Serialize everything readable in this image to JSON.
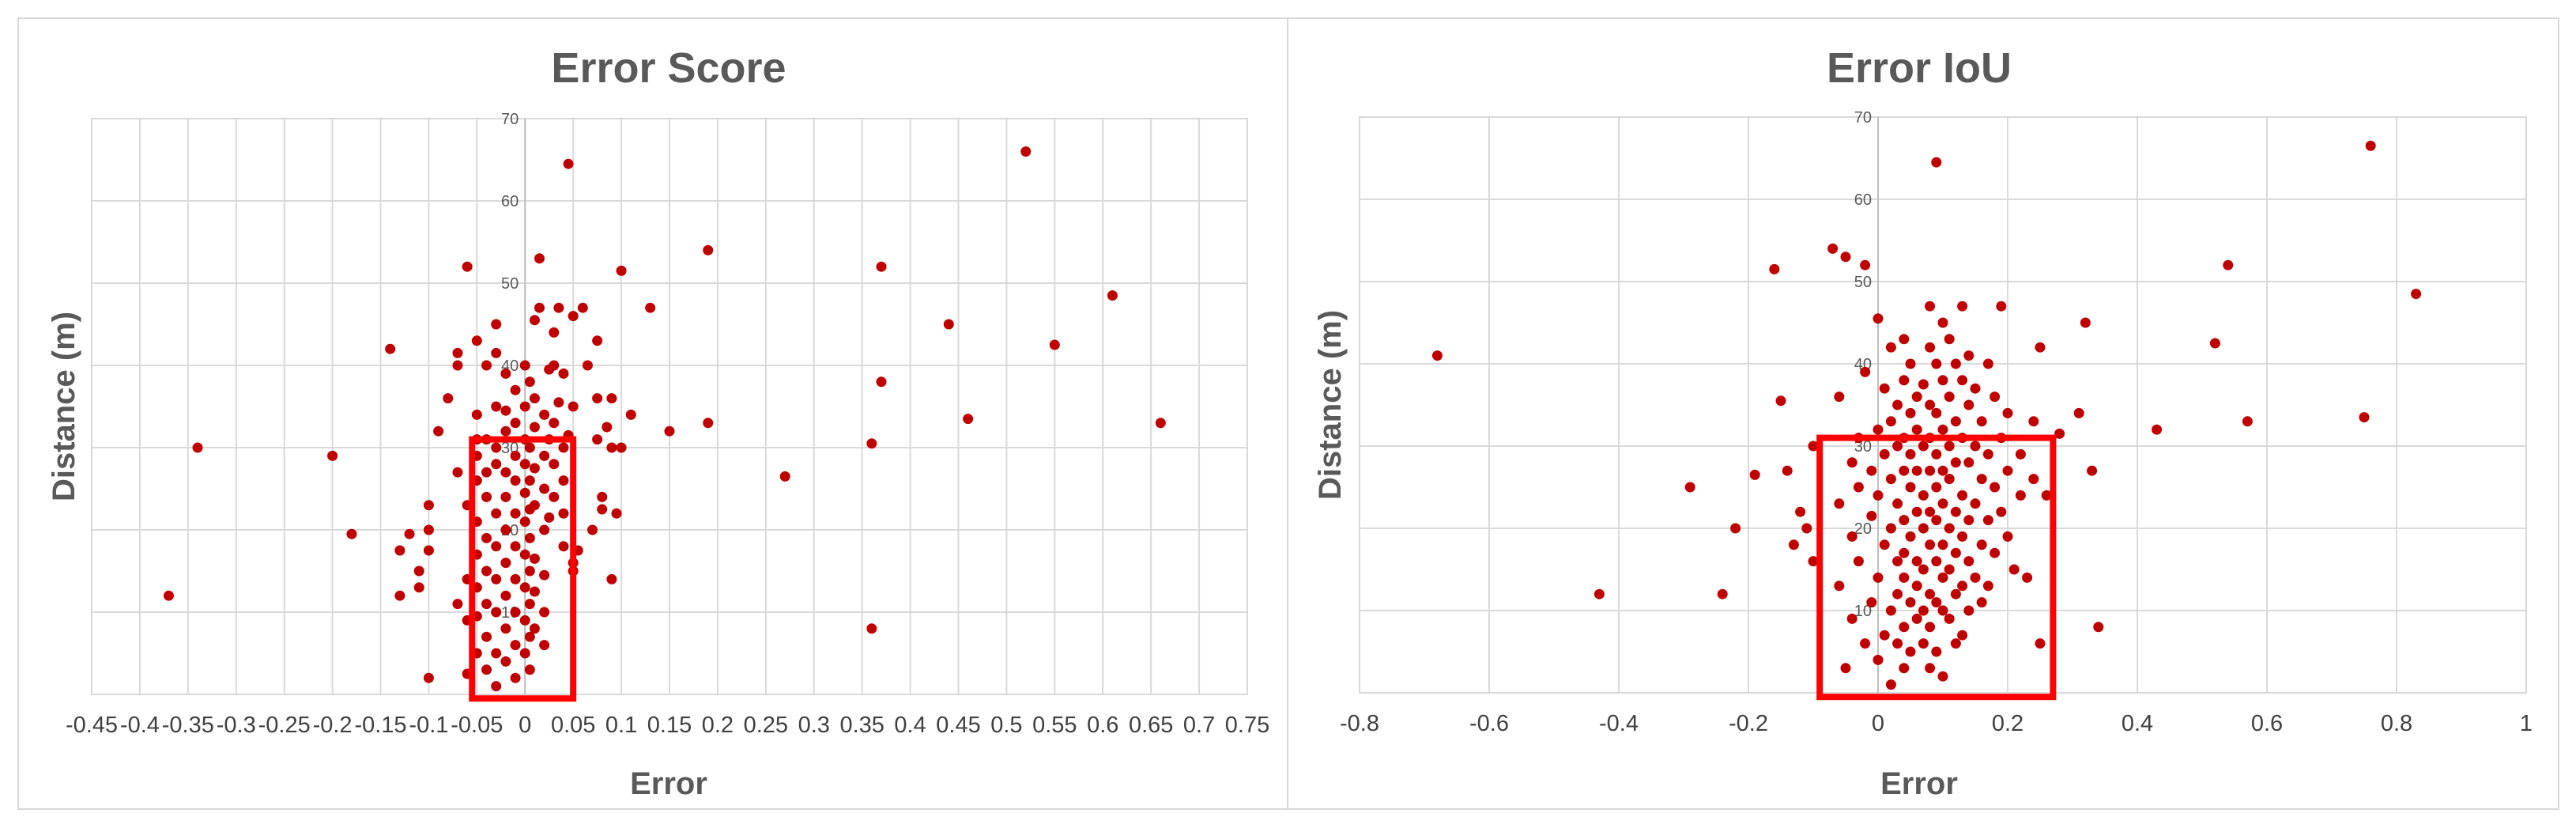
{
  "chart_data": [
    {
      "type": "scatter",
      "title": "Error Score",
      "xlabel": "Error",
      "ylabel": "Distance (m)",
      "xlim": [
        -0.45,
        0.75
      ],
      "ylim": [
        0,
        70
      ],
      "x_ticks": [
        "-0.45",
        "-0.4",
        "-0.35",
        "-0.3",
        "-0.25",
        "-0.2",
        "-0.15",
        "-0.1",
        "-0.05",
        "0",
        "0.05",
        "0.1",
        "0.15",
        "0.2",
        "0.25",
        "0.3",
        "0.35",
        "0.4",
        "0.45",
        "0.5",
        "0.55",
        "0.6",
        "0.65",
        "0.7",
        "0.75"
      ],
      "y_ticks": [
        "10",
        "20",
        "30",
        "40",
        "50",
        "60",
        "70"
      ],
      "grid": true,
      "color": "#c00000",
      "highlight_box": {
        "x": [
          -0.055,
          0.05
        ],
        "y": [
          -0.5,
          31
        ],
        "color": "#ff0000"
      },
      "points": [
        [
          -0.37,
          12
        ],
        [
          -0.34,
          30
        ],
        [
          -0.2,
          29
        ],
        [
          -0.18,
          19.5
        ],
        [
          -0.14,
          42
        ],
        [
          -0.13,
          12
        ],
        [
          -0.13,
          17.5
        ],
        [
          -0.12,
          19.5
        ],
        [
          -0.11,
          13
        ],
        [
          -0.11,
          15
        ],
        [
          -0.1,
          2
        ],
        [
          -0.1,
          17.5
        ],
        [
          -0.1,
          20
        ],
        [
          -0.1,
          23
        ],
        [
          -0.09,
          32
        ],
        [
          -0.08,
          36
        ],
        [
          -0.07,
          27
        ],
        [
          -0.07,
          40
        ],
        [
          -0.07,
          41.5
        ],
        [
          -0.07,
          11
        ],
        [
          -0.06,
          52
        ],
        [
          -0.06,
          23
        ],
        [
          -0.06,
          2.5
        ],
        [
          -0.06,
          14
        ],
        [
          -0.06,
          9
        ],
        [
          -0.05,
          43
        ],
        [
          -0.05,
          34
        ],
        [
          -0.05,
          29
        ],
        [
          -0.05,
          26
        ],
        [
          -0.05,
          21
        ],
        [
          -0.05,
          17
        ],
        [
          -0.05,
          13
        ],
        [
          -0.05,
          9.5
        ],
        [
          -0.05,
          5
        ],
        [
          -0.05,
          31
        ],
        [
          -0.04,
          40
        ],
        [
          -0.04,
          31
        ],
        [
          -0.04,
          27
        ],
        [
          -0.04,
          24
        ],
        [
          -0.04,
          19
        ],
        [
          -0.04,
          15
        ],
        [
          -0.04,
          11
        ],
        [
          -0.04,
          7
        ],
        [
          -0.04,
          3
        ],
        [
          -0.03,
          45
        ],
        [
          -0.03,
          41.5
        ],
        [
          -0.03,
          35
        ],
        [
          -0.03,
          30
        ],
        [
          -0.03,
          28
        ],
        [
          -0.03,
          22
        ],
        [
          -0.03,
          18
        ],
        [
          -0.03,
          14
        ],
        [
          -0.03,
          10
        ],
        [
          -0.03,
          5
        ],
        [
          -0.03,
          1
        ],
        [
          -0.02,
          39
        ],
        [
          -0.02,
          34.5
        ],
        [
          -0.02,
          32
        ],
        [
          -0.02,
          27
        ],
        [
          -0.02,
          24
        ],
        [
          -0.02,
          20
        ],
        [
          -0.02,
          16
        ],
        [
          -0.02,
          12
        ],
        [
          -0.02,
          8
        ],
        [
          -0.02,
          4
        ],
        [
          -0.01,
          37
        ],
        [
          -0.01,
          33
        ],
        [
          -0.01,
          29
        ],
        [
          -0.01,
          26
        ],
        [
          -0.01,
          22
        ],
        [
          -0.01,
          18
        ],
        [
          -0.01,
          14
        ],
        [
          -0.01,
          10
        ],
        [
          -0.01,
          6
        ],
        [
          -0.01,
          2
        ],
        [
          0,
          40
        ],
        [
          0,
          35
        ],
        [
          0,
          31
        ],
        [
          0,
          28
        ],
        [
          0,
          24.5
        ],
        [
          0,
          21
        ],
        [
          0,
          17
        ],
        [
          0,
          13
        ],
        [
          0,
          9
        ],
        [
          0,
          5
        ],
        [
          0.005,
          38
        ],
        [
          0.005,
          30
        ],
        [
          0.005,
          26
        ],
        [
          0.005,
          22.5
        ],
        [
          0.005,
          19
        ],
        [
          0.005,
          15
        ],
        [
          0.005,
          11
        ],
        [
          0.005,
          7
        ],
        [
          0.005,
          3
        ],
        [
          0.01,
          45.5
        ],
        [
          0.01,
          36
        ],
        [
          0.01,
          32.5
        ],
        [
          0.01,
          27.5
        ],
        [
          0.01,
          23
        ],
        [
          0.01,
          16.5
        ],
        [
          0.01,
          12.5
        ],
        [
          0.01,
          8
        ],
        [
          0.015,
          47
        ],
        [
          0.015,
          53
        ],
        [
          0.02,
          34
        ],
        [
          0.02,
          29
        ],
        [
          0.02,
          25
        ],
        [
          0.02,
          20
        ],
        [
          0.02,
          14.5
        ],
        [
          0.02,
          10
        ],
        [
          0.02,
          6
        ],
        [
          0.025,
          39.5
        ],
        [
          0.025,
          31
        ],
        [
          0.025,
          21.5
        ],
        [
          0.03,
          44
        ],
        [
          0.03,
          40
        ],
        [
          0.03,
          33
        ],
        [
          0.03,
          28
        ],
        [
          0.03,
          24
        ],
        [
          0.035,
          47
        ],
        [
          0.035,
          35.5
        ],
        [
          0.04,
          39
        ],
        [
          0.04,
          30
        ],
        [
          0.04,
          26
        ],
        [
          0.04,
          22
        ],
        [
          0.04,
          18
        ],
        [
          0.045,
          64.5
        ],
        [
          0.045,
          31.5
        ],
        [
          0.05,
          46
        ],
        [
          0.05,
          35
        ],
        [
          0.05,
          16
        ],
        [
          0.05,
          15
        ],
        [
          0.055,
          17.5
        ],
        [
          0.06,
          47
        ],
        [
          0.065,
          40
        ],
        [
          0.07,
          20
        ],
        [
          0.075,
          43
        ],
        [
          0.075,
          36
        ],
        [
          0.075,
          31
        ],
        [
          0.08,
          24
        ],
        [
          0.08,
          22.5
        ],
        [
          0.085,
          32.5
        ],
        [
          0.09,
          36
        ],
        [
          0.09,
          30
        ],
        [
          0.09,
          14
        ],
        [
          0.095,
          22
        ],
        [
          0.1,
          51.5
        ],
        [
          0.1,
          30
        ],
        [
          0.11,
          34
        ],
        [
          0.13,
          47
        ],
        [
          0.15,
          32
        ],
        [
          0.19,
          54
        ],
        [
          0.19,
          33
        ],
        [
          0.27,
          26.5
        ],
        [
          0.36,
          8
        ],
        [
          0.36,
          30.5
        ],
        [
          0.37,
          52
        ],
        [
          0.37,
          38
        ],
        [
          0.44,
          45
        ],
        [
          0.46,
          33.5
        ],
        [
          0.52,
          66
        ],
        [
          0.55,
          42.5
        ],
        [
          0.61,
          48.5
        ],
        [
          0.66,
          33
        ]
      ]
    },
    {
      "type": "scatter",
      "title": "Error IoU",
      "xlabel": "Error",
      "ylabel": "Distance (m)",
      "xlim": [
        -0.8,
        1
      ],
      "ylim": [
        0,
        70
      ],
      "x_ticks": [
        "-0.8",
        "-0.6",
        "-0.4",
        "-0.2",
        "0",
        "0.2",
        "0.4",
        "0.6",
        "0.8",
        "1"
      ],
      "y_ticks": [
        "10",
        "20",
        "30",
        "40",
        "50",
        "60",
        "70"
      ],
      "grid": true,
      "color": "#c00000",
      "highlight_box": {
        "x": [
          -0.09,
          0.27
        ],
        "y": [
          -0.5,
          31
        ],
        "color": "#ff0000"
      },
      "points": [
        [
          -0.68,
          41
        ],
        [
          -0.43,
          12
        ],
        [
          -0.29,
          25
        ],
        [
          -0.24,
          12
        ],
        [
          -0.22,
          20
        ],
        [
          -0.19,
          26.5
        ],
        [
          -0.16,
          51.5
        ],
        [
          -0.15,
          35.5
        ],
        [
          -0.14,
          27
        ],
        [
          -0.13,
          18
        ],
        [
          -0.12,
          22
        ],
        [
          -0.11,
          20
        ],
        [
          -0.1,
          16
        ],
        [
          -0.1,
          30
        ],
        [
          -0.07,
          54
        ],
        [
          -0.05,
          53
        ],
        [
          -0.02,
          52
        ],
        [
          -0.06,
          36
        ],
        [
          -0.06,
          23
        ],
        [
          -0.06,
          13
        ],
        [
          -0.05,
          3
        ],
        [
          -0.04,
          28
        ],
        [
          -0.04,
          19
        ],
        [
          -0.04,
          9
        ],
        [
          -0.03,
          31
        ],
        [
          -0.03,
          25
        ],
        [
          -0.03,
          16
        ],
        [
          -0.02,
          39
        ],
        [
          -0.02,
          6
        ],
        [
          -0.01,
          27
        ],
        [
          -0.01,
          21.5
        ],
        [
          -0.01,
          11
        ],
        [
          0,
          45.5
        ],
        [
          0,
          32
        ],
        [
          0,
          24
        ],
        [
          0,
          14
        ],
        [
          0,
          4
        ],
        [
          0.01,
          37
        ],
        [
          0.01,
          29
        ],
        [
          0.01,
          18
        ],
        [
          0.01,
          7
        ],
        [
          0.02,
          42
        ],
        [
          0.02,
          33
        ],
        [
          0.02,
          26
        ],
        [
          0.02,
          20
        ],
        [
          0.02,
          10
        ],
        [
          0.02,
          1
        ],
        [
          0.03,
          35
        ],
        [
          0.03,
          30
        ],
        [
          0.03,
          23
        ],
        [
          0.03,
          16
        ],
        [
          0.03,
          12
        ],
        [
          0.03,
          6
        ],
        [
          0.04,
          43
        ],
        [
          0.04,
          38
        ],
        [
          0.04,
          31
        ],
        [
          0.04,
          27
        ],
        [
          0.04,
          21
        ],
        [
          0.04,
          17
        ],
        [
          0.04,
          14
        ],
        [
          0.04,
          8
        ],
        [
          0.04,
          3
        ],
        [
          0.05,
          40
        ],
        [
          0.05,
          34
        ],
        [
          0.05,
          29
        ],
        [
          0.05,
          25
        ],
        [
          0.05,
          19
        ],
        [
          0.05,
          11
        ],
        [
          0.05,
          5
        ],
        [
          0.06,
          36
        ],
        [
          0.06,
          32
        ],
        [
          0.06,
          27
        ],
        [
          0.06,
          22
        ],
        [
          0.06,
          16
        ],
        [
          0.06,
          13
        ],
        [
          0.06,
          9
        ],
        [
          0.07,
          37.5
        ],
        [
          0.07,
          30
        ],
        [
          0.07,
          24
        ],
        [
          0.07,
          20
        ],
        [
          0.07,
          15
        ],
        [
          0.07,
          10
        ],
        [
          0.07,
          6
        ],
        [
          0.08,
          47
        ],
        [
          0.08,
          42
        ],
        [
          0.08,
          35
        ],
        [
          0.08,
          31
        ],
        [
          0.08,
          27
        ],
        [
          0.08,
          22
        ],
        [
          0.08,
          18
        ],
        [
          0.08,
          12
        ],
        [
          0.08,
          8
        ],
        [
          0.08,
          3
        ],
        [
          0.09,
          64.5
        ],
        [
          0.09,
          40
        ],
        [
          0.09,
          34
        ],
        [
          0.09,
          29
        ],
        [
          0.09,
          25
        ],
        [
          0.09,
          21
        ],
        [
          0.09,
          16
        ],
        [
          0.09,
          11
        ],
        [
          0.09,
          5
        ],
        [
          0.1,
          45
        ],
        [
          0.1,
          38
        ],
        [
          0.1,
          32
        ],
        [
          0.1,
          27
        ],
        [
          0.1,
          23
        ],
        [
          0.1,
          18
        ],
        [
          0.1,
          14
        ],
        [
          0.1,
          10
        ],
        [
          0.1,
          2
        ],
        [
          0.11,
          43
        ],
        [
          0.11,
          36
        ],
        [
          0.11,
          30
        ],
        [
          0.11,
          26
        ],
        [
          0.11,
          20
        ],
        [
          0.11,
          15
        ],
        [
          0.11,
          9
        ],
        [
          0.12,
          40
        ],
        [
          0.12,
          33
        ],
        [
          0.12,
          28
        ],
        [
          0.12,
          22
        ],
        [
          0.12,
          17
        ],
        [
          0.12,
          12
        ],
        [
          0.12,
          6
        ],
        [
          0.13,
          47
        ],
        [
          0.13,
          38
        ],
        [
          0.13,
          31
        ],
        [
          0.13,
          24
        ],
        [
          0.13,
          19
        ],
        [
          0.13,
          13
        ],
        [
          0.13,
          7
        ],
        [
          0.14,
          41
        ],
        [
          0.14,
          35
        ],
        [
          0.14,
          28
        ],
        [
          0.14,
          21
        ],
        [
          0.14,
          16
        ],
        [
          0.14,
          10
        ],
        [
          0.15,
          37
        ],
        [
          0.15,
          30
        ],
        [
          0.15,
          23
        ],
        [
          0.15,
          14
        ],
        [
          0.16,
          33
        ],
        [
          0.16,
          26
        ],
        [
          0.16,
          18
        ],
        [
          0.16,
          11
        ],
        [
          0.17,
          40
        ],
        [
          0.17,
          29
        ],
        [
          0.17,
          21
        ],
        [
          0.17,
          13
        ],
        [
          0.18,
          36
        ],
        [
          0.18,
          25
        ],
        [
          0.18,
          17
        ],
        [
          0.19,
          47
        ],
        [
          0.19,
          31
        ],
        [
          0.19,
          22
        ],
        [
          0.2,
          34
        ],
        [
          0.2,
          27
        ],
        [
          0.2,
          19
        ],
        [
          0.21,
          15
        ],
        [
          0.22,
          29
        ],
        [
          0.22,
          24
        ],
        [
          0.23,
          14
        ],
        [
          0.24,
          33
        ],
        [
          0.24,
          26
        ],
        [
          0.25,
          42
        ],
        [
          0.25,
          6
        ],
        [
          0.26,
          24
        ],
        [
          0.28,
          31.5
        ],
        [
          0.31,
          34
        ],
        [
          0.32,
          45
        ],
        [
          0.33,
          27
        ],
        [
          0.34,
          8
        ],
        [
          0.43,
          32
        ],
        [
          0.52,
          42.5
        ],
        [
          0.54,
          52
        ],
        [
          0.57,
          33
        ],
        [
          0.75,
          33.5
        ],
        [
          0.76,
          66.5
        ],
        [
          0.83,
          48.5
        ]
      ]
    }
  ]
}
